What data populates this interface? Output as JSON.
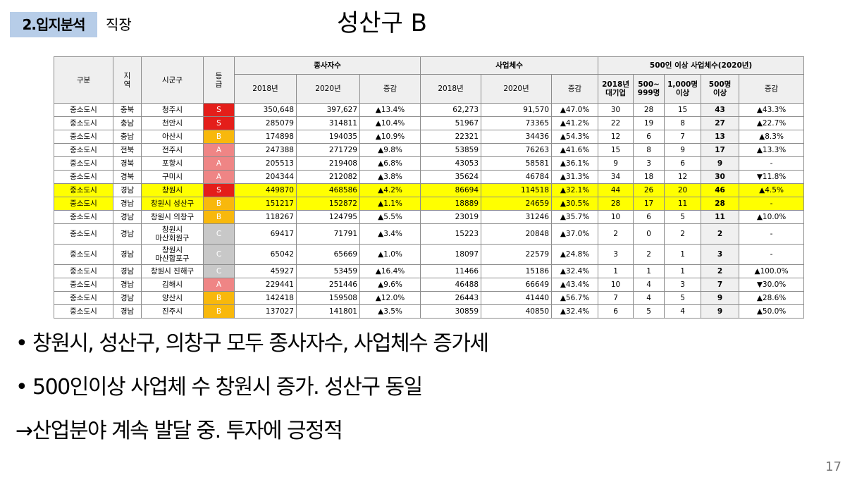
{
  "header": {
    "section": "2.입지분석",
    "subsection": "직장",
    "title": "성산구 B"
  },
  "table": {
    "col": {
      "gubun": "구분",
      "jiyeok": "지\n역",
      "sigungu": "시군구",
      "grade": "등\n급"
    },
    "groups": {
      "workers": "종사자수",
      "businesses": "사업체수",
      "large": "500인 이상 사업체수(2020년)"
    },
    "sub": {
      "y2018": "2018년",
      "y2020": "2020년",
      "change": "증감",
      "large1": "2018년\n대기업",
      "large2": "500~\n999명",
      "large3": "1,000명\n이상",
      "large4": "500명\n이상"
    },
    "rows": [
      {
        "gubun": "중소도시",
        "region": "충북",
        "city": "청주시",
        "grade": "S",
        "w18": "350,648",
        "w20": "397,627",
        "wc": "▲13.4%",
        "b18": "62,273",
        "b20": "91,570",
        "bc": "▲47.0%",
        "l1": "30",
        "l2": "28",
        "l3": "15",
        "l4": "43",
        "lc": "▲43.3%"
      },
      {
        "gubun": "중소도시",
        "region": "충남",
        "city": "천안시",
        "grade": "S",
        "w18": "285079",
        "w20": "314811",
        "wc": "▲10.4%",
        "b18": "51967",
        "b20": "73365",
        "bc": "▲41.2%",
        "l1": "22",
        "l2": "19",
        "l3": "8",
        "l4": "27",
        "lc": "▲22.7%"
      },
      {
        "gubun": "중소도시",
        "region": "충남",
        "city": "아산시",
        "grade": "B",
        "w18": "174898",
        "w20": "194035",
        "wc": "▲10.9%",
        "b18": "22321",
        "b20": "34436",
        "bc": "▲54.3%",
        "l1": "12",
        "l2": "6",
        "l3": "7",
        "l4": "13",
        "lc": "▲8.3%"
      },
      {
        "gubun": "중소도시",
        "region": "전북",
        "city": "전주시",
        "grade": "A",
        "w18": "247388",
        "w20": "271729",
        "wc": "▲9.8%",
        "b18": "53859",
        "b20": "76263",
        "bc": "▲41.6%",
        "l1": "15",
        "l2": "8",
        "l3": "9",
        "l4": "17",
        "lc": "▲13.3%"
      },
      {
        "gubun": "중소도시",
        "region": "경북",
        "city": "포항시",
        "grade": "A",
        "w18": "205513",
        "w20": "219408",
        "wc": "▲6.8%",
        "b18": "43053",
        "b20": "58581",
        "bc": "▲36.1%",
        "l1": "9",
        "l2": "3",
        "l3": "6",
        "l4": "9",
        "lc": "-"
      },
      {
        "gubun": "중소도시",
        "region": "경북",
        "city": "구미시",
        "grade": "A",
        "w18": "204344",
        "w20": "212082",
        "wc": "▲3.8%",
        "b18": "35624",
        "b20": "46784",
        "bc": "▲31.3%",
        "l1": "34",
        "l2": "18",
        "l3": "12",
        "l4": "30",
        "lc": "▼11.8%"
      },
      {
        "gubun": "중소도시",
        "region": "경남",
        "city": "창원시",
        "grade": "S",
        "w18": "449870",
        "w20": "468586",
        "wc": "▲4.2%",
        "b18": "86694",
        "b20": "114518",
        "bc": "▲32.1%",
        "l1": "44",
        "l2": "26",
        "l3": "20",
        "l4": "46",
        "lc": "▲4.5%",
        "hl": true
      },
      {
        "gubun": "중소도시",
        "region": "경남",
        "city": "창원시 성산구",
        "grade": "B",
        "w18": "151217",
        "w20": "152872",
        "wc": "▲1.1%",
        "b18": "18889",
        "b20": "24659",
        "bc": "▲30.5%",
        "l1": "28",
        "l2": "17",
        "l3": "11",
        "l4": "28",
        "lc": "-",
        "hl": true
      },
      {
        "gubun": "중소도시",
        "region": "경남",
        "city": "창원시 의창구",
        "grade": "B",
        "w18": "118267",
        "w20": "124795",
        "wc": "▲5.5%",
        "b18": "23019",
        "b20": "31246",
        "bc": "▲35.7%",
        "l1": "10",
        "l2": "6",
        "l3": "5",
        "l4": "11",
        "lc": "▲10.0%"
      },
      {
        "gubun": "중소도시",
        "region": "경남",
        "city": "창원시\n마산회원구",
        "grade": "C",
        "w18": "69417",
        "w20": "71791",
        "wc": "▲3.4%",
        "b18": "15223",
        "b20": "20848",
        "bc": "▲37.0%",
        "l1": "2",
        "l2": "0",
        "l3": "2",
        "l4": "2",
        "lc": "-",
        "tall": true
      },
      {
        "gubun": "중소도시",
        "region": "경남",
        "city": "창원시\n마산합포구",
        "grade": "C",
        "w18": "65042",
        "w20": "65669",
        "wc": "▲1.0%",
        "b18": "18097",
        "b20": "22579",
        "bc": "▲24.8%",
        "l1": "3",
        "l2": "2",
        "l3": "1",
        "l4": "3",
        "lc": "-",
        "tall": true
      },
      {
        "gubun": "중소도시",
        "region": "경남",
        "city": "창원시 진해구",
        "grade": "C",
        "w18": "45927",
        "w20": "53459",
        "wc": "▲16.4%",
        "b18": "11466",
        "b20": "15186",
        "bc": "▲32.4%",
        "l1": "1",
        "l2": "1",
        "l3": "1",
        "l4": "2",
        "lc": "▲100.0%"
      },
      {
        "gubun": "중소도시",
        "region": "경남",
        "city": "김해시",
        "grade": "A",
        "w18": "229441",
        "w20": "251446",
        "wc": "▲9.6%",
        "b18": "46488",
        "b20": "66649",
        "bc": "▲43.4%",
        "l1": "10",
        "l2": "4",
        "l3": "3",
        "l4": "7",
        "lc": "▼30.0%"
      },
      {
        "gubun": "중소도시",
        "region": "경남",
        "city": "양산시",
        "grade": "B",
        "w18": "142418",
        "w20": "159508",
        "wc": "▲12.0%",
        "b18": "26443",
        "b20": "41440",
        "bc": "▲56.7%",
        "l1": "7",
        "l2": "4",
        "l3": "5",
        "l4": "9",
        "lc": "▲28.6%"
      },
      {
        "gubun": "중소도시",
        "region": "경남",
        "city": "진주시",
        "grade": "B",
        "w18": "137027",
        "w20": "141801",
        "wc": "▲3.5%",
        "b18": "30859",
        "b20": "40850",
        "bc": "▲32.4%",
        "l1": "6",
        "l2": "5",
        "l3": "4",
        "l4": "9",
        "lc": "▲50.0%"
      }
    ]
  },
  "bullets": [
    "창원시, 성산구, 의창구 모두 종사자수, 사업체수 증가세",
    "500인이상 사업체 수 창원시 증가. 성산구 동일"
  ],
  "conclusion": "산업분야 계속 발달 중. 투자에 긍정적",
  "bullet_dot": "•",
  "conclusion_arrow": "→",
  "page_number": "17",
  "colors": {
    "grade_S": "#e41e1a",
    "grade_A": "#ef8585",
    "grade_B": "#f8b80c",
    "grade_C": "#c8c8c8",
    "highlight": "#ffff00",
    "badge": "#b7cde8"
  }
}
